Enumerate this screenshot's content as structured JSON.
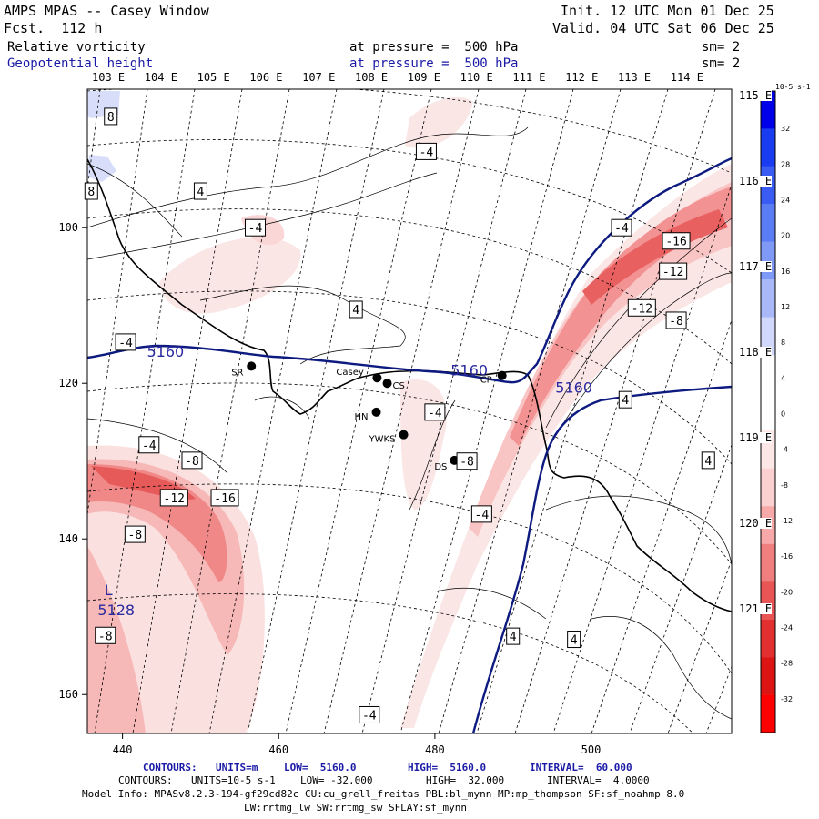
{
  "header": {
    "title": "AMPS MPAS -- Casey Window",
    "forecast": "Fcst.  112 h",
    "init": "Init. 12 UTC Mon 01 Dec 25",
    "valid": "Valid. 04 UTC Sat 06 Dec 25",
    "field1": {
      "name": "Relative vorticity",
      "pressure": "at pressure =  500 hPa",
      "smooth": "sm= 2"
    },
    "field2": {
      "name": "Geopotential height",
      "pressure": "at pressure =  500 hPa",
      "smooth": "sm= 2"
    }
  },
  "longitude_labels_top": [
    "103 E",
    "104 E",
    "105 E",
    "106 E",
    "107 E",
    "108 E",
    "109 E",
    "110 E",
    "111 E",
    "112 E",
    "113 E",
    "114 E"
  ],
  "longitude_labels_right": [
    "115 E",
    "116 E",
    "117 E",
    "118 E",
    "119 E",
    "120 E",
    "121 E"
  ],
  "grid_x_ticks": [
    "440",
    "460",
    "480",
    "500"
  ],
  "grid_y_ticks": [
    "100",
    "120",
    "140",
    "160"
  ],
  "stations": [
    {
      "id": "SR",
      "x": 456.5,
      "y": 117.8
    },
    {
      "id": "Casey",
      "x": 472.6,
      "y": 119.3
    },
    {
      "id": "CS",
      "x": 473.9,
      "y": 120.0
    },
    {
      "id": "HN",
      "x": 472.5,
      "y": 123.7
    },
    {
      "id": "YWKS",
      "x": 476.0,
      "y": 126.6
    },
    {
      "id": "CP",
      "x": 488.6,
      "y": 119.0
    },
    {
      "id": "DS",
      "x": 482.5,
      "y": 129.9
    }
  ],
  "height_labels": [
    {
      "text": "5160",
      "x": 445.5,
      "y": 116.6
    },
    {
      "text": "5160",
      "x": 484.4,
      "y": 119.0
    },
    {
      "text": "5160",
      "x": 497.8,
      "y": 121.2
    },
    {
      "text": "L",
      "x": 438.2,
      "y": 147.2
    },
    {
      "text": "5128",
      "x": 439.2,
      "y": 149.8
    }
  ],
  "vorticity_labels": [
    {
      "text": "8",
      "x": 438.5,
      "y": 85.7
    },
    {
      "text": "8",
      "x": 436.0,
      "y": 95.3
    },
    {
      "text": "4",
      "x": 450.0,
      "y": 95.3
    },
    {
      "text": "-4",
      "x": 457.0,
      "y": 100.0
    },
    {
      "text": "-4",
      "x": 478.9,
      "y": 90.2
    },
    {
      "text": "4",
      "x": 469.9,
      "y": 110.5
    },
    {
      "text": "-4",
      "x": 440.4,
      "y": 114.7
    },
    {
      "text": "-4",
      "x": 503.9,
      "y": 100.0
    },
    {
      "text": "-16",
      "x": 510.9,
      "y": 101.7
    },
    {
      "text": "-12",
      "x": 510.5,
      "y": 105.6
    },
    {
      "text": "-12",
      "x": 506.5,
      "y": 110.3
    },
    {
      "text": "-8",
      "x": 510.9,
      "y": 111.9
    },
    {
      "text": "-4",
      "x": 480.0,
      "y": 123.7
    },
    {
      "text": "4",
      "x": 504.4,
      "y": 122.1
    },
    {
      "text": "4",
      "x": 515.0,
      "y": 129.9
    },
    {
      "text": "-8",
      "x": 484.1,
      "y": 130.0
    },
    {
      "text": "-4",
      "x": 443.4,
      "y": 127.9
    },
    {
      "text": "-8",
      "x": 448.9,
      "y": 129.9
    },
    {
      "text": "-12",
      "x": 446.6,
      "y": 134.7
    },
    {
      "text": "-16",
      "x": 453.1,
      "y": 134.7
    },
    {
      "text": "-4",
      "x": 486.0,
      "y": 136.8
    },
    {
      "text": "-8",
      "x": 441.6,
      "y": 139.4
    },
    {
      "text": "-8",
      "x": 437.8,
      "y": 152.4
    },
    {
      "text": "4",
      "x": 490.0,
      "y": 152.5
    },
    {
      "text": "4",
      "x": 497.8,
      "y": 152.9
    },
    {
      "text": "-4",
      "x": 471.6,
      "y": 162.6
    }
  ],
  "colorbar": {
    "units": "10-5 s-1",
    "levels": [
      32,
      28,
      24,
      20,
      16,
      12,
      8,
      4,
      0,
      -4,
      -8,
      -12,
      -16,
      -20,
      -24,
      -28,
      -32
    ],
    "colors": [
      "#0000e8",
      "#1a3cf0",
      "#3a5cf2",
      "#5a7cf4",
      "#7f99f6",
      "#a8b8f8",
      "#d0d8fb",
      "#ffffff",
      "#ffffff",
      "#fde6e6",
      "#fbd0d0",
      "#f7a8a8",
      "#f07e7e",
      "#e95555",
      "#e23030",
      "#dc1414",
      "#ff0000"
    ]
  },
  "footer": {
    "line1": {
      "label": "CONTOURS:",
      "units": "UNITS=m",
      "low": "LOW=  5160.0",
      "high": "HIGH=  5160.0",
      "interval": "INTERVAL=  60.000"
    },
    "line2": {
      "label": "CONTOURS:",
      "units": "UNITS=10-5 s-1",
      "low": "LOW= -32.000",
      "high": "HIGH=  32.000",
      "interval": "INTERVAL=  4.0000"
    },
    "model1": "Model Info: MPASv8.2.3-194-gf29cd82c CU:cu_grell_freitas PBL:bl_mynn MP:mp_thompson SF:sf_noahmp 8.0",
    "model2": "LW:rrtmg_lw SW:rrtmg_sw SFLAY:sf_mynn"
  }
}
